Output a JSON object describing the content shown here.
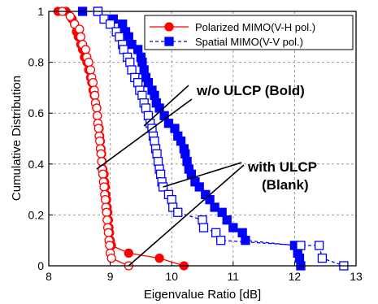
{
  "chart_data": {
    "type": "line",
    "title": "",
    "xlabel": "Eigenvalue Ratio [dB]",
    "ylabel": "Cumulative Distribution",
    "xlim": [
      8,
      13
    ],
    "ylim": [
      0,
      1
    ],
    "x_ticks": [
      "8",
      "9",
      "10",
      "11",
      "12",
      "13"
    ],
    "y_ticks": [
      "0",
      "0.2",
      "0.4",
      "0.6",
      "0.8",
      "1"
    ],
    "grid": "dashed",
    "legend_position": "top-right",
    "colors": {
      "red": "#ff0000",
      "blue": "#0000ff"
    },
    "series": [
      {
        "name": "Polarized MIMO(V-H pol.)",
        "color": "#ff0000",
        "marker": "circle",
        "fill": "filled",
        "line": "solid",
        "in_legend": true,
        "points": [
          [
            8.15,
            1.0
          ],
          [
            8.28,
            1.0
          ],
          [
            8.38,
            0.97
          ],
          [
            8.42,
            0.95
          ],
          [
            8.45,
            0.92
          ],
          [
            8.48,
            0.9
          ],
          [
            8.52,
            0.87
          ],
          [
            8.55,
            0.85
          ],
          [
            8.58,
            0.82
          ],
          [
            8.62,
            0.8
          ],
          [
            8.65,
            0.77
          ],
          [
            8.68,
            0.74
          ],
          [
            8.7,
            0.72
          ],
          [
            8.72,
            0.69
          ],
          [
            8.74,
            0.67
          ],
          [
            8.76,
            0.64
          ],
          [
            8.78,
            0.62
          ],
          [
            8.79,
            0.59
          ],
          [
            8.8,
            0.56
          ],
          [
            8.82,
            0.54
          ],
          [
            8.83,
            0.51
          ],
          [
            8.84,
            0.49
          ],
          [
            8.85,
            0.46
          ],
          [
            8.86,
            0.44
          ],
          [
            8.87,
            0.41
          ],
          [
            8.88,
            0.38
          ],
          [
            8.9,
            0.36
          ],
          [
            8.91,
            0.33
          ],
          [
            8.92,
            0.31
          ],
          [
            8.93,
            0.28
          ],
          [
            8.94,
            0.26
          ],
          [
            8.95,
            0.23
          ],
          [
            8.96,
            0.21
          ],
          [
            8.97,
            0.18
          ],
          [
            8.98,
            0.15
          ],
          [
            8.99,
            0.13
          ],
          [
            9.0,
            0.1
          ],
          [
            9.02,
            0.08
          ],
          [
            9.3,
            0.05
          ],
          [
            9.8,
            0.03
          ],
          [
            10.2,
            0.0
          ]
        ]
      },
      {
        "name": "Spatial MIMO(V-V pol.)",
        "color": "#0000ff",
        "marker": "square",
        "fill": "filled",
        "line": "dashed",
        "in_legend": true,
        "points": [
          [
            8.55,
            1.0
          ],
          [
            8.8,
            1.0
          ],
          [
            9.05,
            0.97
          ],
          [
            9.2,
            0.95
          ],
          [
            9.25,
            0.92
          ],
          [
            9.3,
            0.9
          ],
          [
            9.35,
            0.87
          ],
          [
            9.45,
            0.85
          ],
          [
            9.5,
            0.82
          ],
          [
            9.52,
            0.8
          ],
          [
            9.55,
            0.77
          ],
          [
            9.58,
            0.74
          ],
          [
            9.62,
            0.72
          ],
          [
            9.68,
            0.69
          ],
          [
            9.72,
            0.67
          ],
          [
            9.75,
            0.64
          ],
          [
            9.8,
            0.62
          ],
          [
            9.88,
            0.59
          ],
          [
            9.95,
            0.56
          ],
          [
            10.05,
            0.54
          ],
          [
            10.1,
            0.51
          ],
          [
            10.15,
            0.49
          ],
          [
            10.2,
            0.46
          ],
          [
            10.22,
            0.44
          ],
          [
            10.25,
            0.41
          ],
          [
            10.28,
            0.38
          ],
          [
            10.32,
            0.36
          ],
          [
            10.38,
            0.33
          ],
          [
            10.45,
            0.31
          ],
          [
            10.55,
            0.28
          ],
          [
            10.62,
            0.26
          ],
          [
            10.7,
            0.23
          ],
          [
            10.82,
            0.21
          ],
          [
            10.9,
            0.18
          ],
          [
            11.0,
            0.15
          ],
          [
            11.15,
            0.13
          ],
          [
            11.2,
            0.1
          ],
          [
            12.0,
            0.08
          ],
          [
            12.05,
            0.05
          ],
          [
            12.08,
            0.03
          ],
          [
            12.1,
            0.0
          ]
        ]
      },
      {
        "name": "",
        "color": "#ff0000",
        "marker": "circle",
        "fill": "open",
        "line": "solid",
        "in_legend": false,
        "points": [
          [
            8.22,
            1.0
          ],
          [
            8.35,
            0.98
          ],
          [
            8.42,
            0.95
          ],
          [
            8.5,
            0.93
          ],
          [
            8.52,
            0.9
          ],
          [
            8.55,
            0.87
          ],
          [
            8.6,
            0.85
          ],
          [
            8.62,
            0.82
          ],
          [
            8.65,
            0.8
          ],
          [
            8.68,
            0.77
          ],
          [
            8.7,
            0.74
          ],
          [
            8.72,
            0.72
          ],
          [
            8.74,
            0.69
          ],
          [
            8.75,
            0.67
          ],
          [
            8.76,
            0.64
          ],
          [
            8.78,
            0.62
          ],
          [
            8.79,
            0.59
          ],
          [
            8.8,
            0.56
          ],
          [
            8.81,
            0.54
          ],
          [
            8.82,
            0.51
          ],
          [
            8.83,
            0.49
          ],
          [
            8.84,
            0.46
          ],
          [
            8.85,
            0.44
          ],
          [
            8.86,
            0.41
          ],
          [
            8.87,
            0.38
          ],
          [
            8.88,
            0.36
          ],
          [
            8.89,
            0.33
          ],
          [
            8.9,
            0.31
          ],
          [
            8.91,
            0.28
          ],
          [
            8.92,
            0.26
          ],
          [
            8.93,
            0.23
          ],
          [
            8.94,
            0.21
          ],
          [
            8.95,
            0.18
          ],
          [
            8.96,
            0.15
          ],
          [
            8.97,
            0.13
          ],
          [
            8.98,
            0.1
          ],
          [
            8.99,
            0.08
          ],
          [
            9.0,
            0.05
          ],
          [
            9.02,
            0.03
          ],
          [
            9.3,
            0.0
          ]
        ]
      },
      {
        "name": "",
        "color": "#0000ff",
        "marker": "square",
        "fill": "open",
        "line": "dashed",
        "in_legend": false,
        "points": [
          [
            8.8,
            1.0
          ],
          [
            8.9,
            0.97
          ],
          [
            9.0,
            0.95
          ],
          [
            9.1,
            0.92
          ],
          [
            9.15,
            0.9
          ],
          [
            9.2,
            0.87
          ],
          [
            9.22,
            0.85
          ],
          [
            9.28,
            0.82
          ],
          [
            9.32,
            0.8
          ],
          [
            9.35,
            0.77
          ],
          [
            9.4,
            0.74
          ],
          [
            9.45,
            0.72
          ],
          [
            9.48,
            0.69
          ],
          [
            9.52,
            0.67
          ],
          [
            9.55,
            0.64
          ],
          [
            9.58,
            0.62
          ],
          [
            9.62,
            0.59
          ],
          [
            9.65,
            0.56
          ],
          [
            9.68,
            0.54
          ],
          [
            9.7,
            0.51
          ],
          [
            9.72,
            0.49
          ],
          [
            9.74,
            0.46
          ],
          [
            9.76,
            0.44
          ],
          [
            9.78,
            0.41
          ],
          [
            9.8,
            0.38
          ],
          [
            9.82,
            0.36
          ],
          [
            9.84,
            0.33
          ],
          [
            9.86,
            0.31
          ],
          [
            9.95,
            0.28
          ],
          [
            10.0,
            0.26
          ],
          [
            10.02,
            0.23
          ],
          [
            10.1,
            0.21
          ],
          [
            10.5,
            0.18
          ],
          [
            10.52,
            0.15
          ],
          [
            10.72,
            0.13
          ],
          [
            10.8,
            0.1
          ],
          [
            12.1,
            0.08
          ],
          [
            12.4,
            0.08
          ],
          [
            12.45,
            0.03
          ],
          [
            12.8,
            0.0
          ]
        ]
      }
    ],
    "annotations": [
      {
        "text": "w/o ULCP (Bold)",
        "pointers": [
          [
            8.78,
            0.38
          ],
          [
            9.55,
            0.55
          ]
        ]
      },
      {
        "text": "with ULCP",
        "pointers": [
          [
            9.3,
            0.0
          ],
          [
            9.86,
            0.31
          ]
        ]
      },
      {
        "text": "(Blank)",
        "pointers": []
      }
    ]
  }
}
